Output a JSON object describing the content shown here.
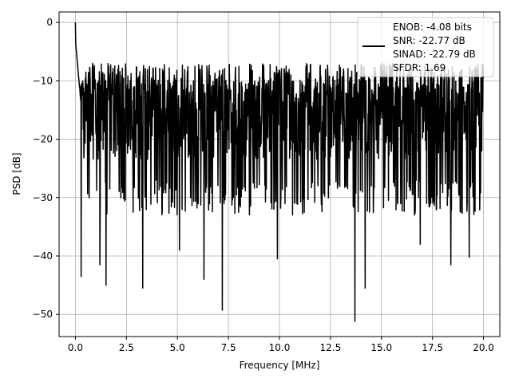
{
  "chart_data": {
    "type": "line",
    "title": "",
    "xlabel": "Frequency [MHz]",
    "ylabel": "PSD [dB]",
    "xlim": [
      -0.8,
      20.8
    ],
    "ylim": [
      -53.8,
      1.8
    ],
    "x_ticks": [
      0.0,
      2.5,
      5.0,
      7.5,
      10.0,
      12.5,
      15.0,
      17.5,
      20.0
    ],
    "x_tick_labels": [
      "0.0",
      "2.5",
      "5.0",
      "7.5",
      "10.0",
      "12.5",
      "15.0",
      "17.5",
      "20.0"
    ],
    "y_ticks": [
      0,
      -10,
      -20,
      -30,
      -40,
      -50
    ],
    "y_tick_labels": [
      "0",
      "−10",
      "−20",
      "−30",
      "−40",
      "−50"
    ],
    "grid": true,
    "legend_position": "top-right",
    "legend": {
      "entries": [
        "ENOB: -4.08 bits",
        "SNR: -22.77 dB",
        "SINAD: -22.79 dB",
        "SFDR: 1.69"
      ]
    },
    "series": [
      {
        "color": "#000000",
        "x_range": [
          0.0,
          20.0
        ],
        "noise_band": [
          -30.0,
          -10.0
        ],
        "peak": {
          "x": 0.0,
          "y": 0.0
        },
        "dips": [
          {
            "x": 0.28,
            "y": -43.5
          },
          {
            "x": 1.2,
            "y": -41.5
          },
          {
            "x": 1.5,
            "y": -45.0
          },
          {
            "x": 3.3,
            "y": -45.5
          },
          {
            "x": 5.1,
            "y": -39.0
          },
          {
            "x": 6.3,
            "y": -44.0
          },
          {
            "x": 7.2,
            "y": -49.3
          },
          {
            "x": 9.9,
            "y": -40.5
          },
          {
            "x": 13.7,
            "y": -51.2
          },
          {
            "x": 14.2,
            "y": -45.5
          },
          {
            "x": 16.9,
            "y": -38.0
          },
          {
            "x": 18.4,
            "y": -41.5
          },
          {
            "x": 19.3,
            "y": -40.2
          }
        ]
      }
    ]
  }
}
